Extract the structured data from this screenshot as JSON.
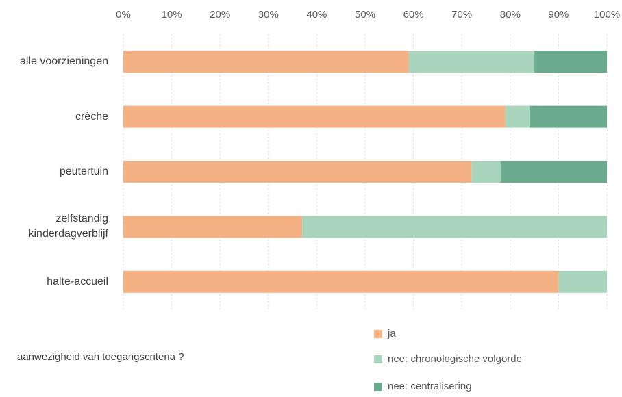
{
  "chart_data": {
    "type": "stacked-bar-horizontal",
    "categories": [
      "alle voorzieningen",
      "crèche",
      "peutertuin",
      "zelfstandig kinderdagverblijf",
      "halte-accueil"
    ],
    "series": [
      {
        "name": "ja",
        "color": "#f4b183",
        "values": [
          59,
          79,
          72,
          37,
          90
        ]
      },
      {
        "name": "nee: chronologische volgorde",
        "color": "#a9d5bd",
        "values": [
          26,
          5,
          6,
          63,
          10
        ]
      },
      {
        "name": "nee: centralisering",
        "color": "#6aaa8d",
        "values": [
          15,
          16,
          22,
          0,
          0
        ]
      }
    ],
    "xlim": [
      0,
      100
    ],
    "xticks": [
      {
        "value": 0,
        "label": "0%"
      },
      {
        "value": 10,
        "label": "10%"
      },
      {
        "value": 20,
        "label": "20%"
      },
      {
        "value": 30,
        "label": "30%"
      },
      {
        "value": 40,
        "label": "40%"
      },
      {
        "value": 50,
        "label": "50%"
      },
      {
        "value": 60,
        "label": "60%"
      },
      {
        "value": 70,
        "label": "70%"
      },
      {
        "value": 80,
        "label": "80%"
      },
      {
        "value": 90,
        "label": "90%"
      },
      {
        "value": 100,
        "label": "100%"
      }
    ],
    "grid": true,
    "legend_title": "aanwezigheid van toegangscriteria ?",
    "legend": "bottom-right"
  }
}
